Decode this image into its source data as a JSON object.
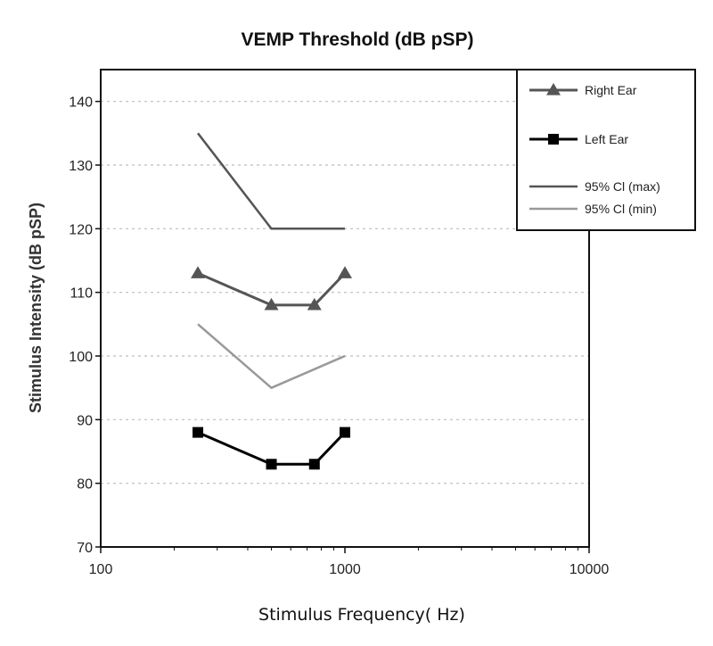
{
  "chart_data": {
    "type": "line",
    "title": "VEMP Threshold (dB pSP)",
    "xlabel": "Stimulus Frequency( Hz)",
    "ylabel": "Stimulus Intensity (dB pSP)",
    "x_scale": "log",
    "xlim": [
      100,
      10000
    ],
    "ylim": [
      70,
      145
    ],
    "x_ticks": [
      {
        "value": 100,
        "label": "100"
      },
      {
        "value": 1000,
        "label": "1000"
      },
      {
        "value": 10000,
        "label": "10000"
      }
    ],
    "y_ticks": [
      {
        "value": 70,
        "label": "70"
      },
      {
        "value": 80,
        "label": "80"
      },
      {
        "value": 90,
        "label": "90"
      },
      {
        "value": 100,
        "label": "100"
      },
      {
        "value": 110,
        "label": "110"
      },
      {
        "value": 120,
        "label": "120"
      },
      {
        "value": 130,
        "label": "130"
      },
      {
        "value": 140,
        "label": "140"
      }
    ],
    "grid": "horizontal-dashed",
    "legend_position": "top-right",
    "series": [
      {
        "name": "Right Ear",
        "marker": "triangle",
        "color": "#555555",
        "x": [
          250,
          500,
          750,
          1000
        ],
        "y": [
          113,
          108,
          108,
          113
        ]
      },
      {
        "name": "Left Ear",
        "marker": "square",
        "color": "#000000",
        "x": [
          250,
          500,
          750,
          1000
        ],
        "y": [
          88,
          83,
          83,
          88
        ]
      },
      {
        "name": "95% Cl (max)",
        "marker": "none",
        "color": "#555555",
        "x": [
          250,
          500,
          1000
        ],
        "y": [
          135,
          120,
          120
        ]
      },
      {
        "name": "95% Cl (min)",
        "marker": "none",
        "color": "#999999",
        "x": [
          250,
          500,
          1000
        ],
        "y": [
          105,
          95,
          100
        ]
      }
    ]
  }
}
